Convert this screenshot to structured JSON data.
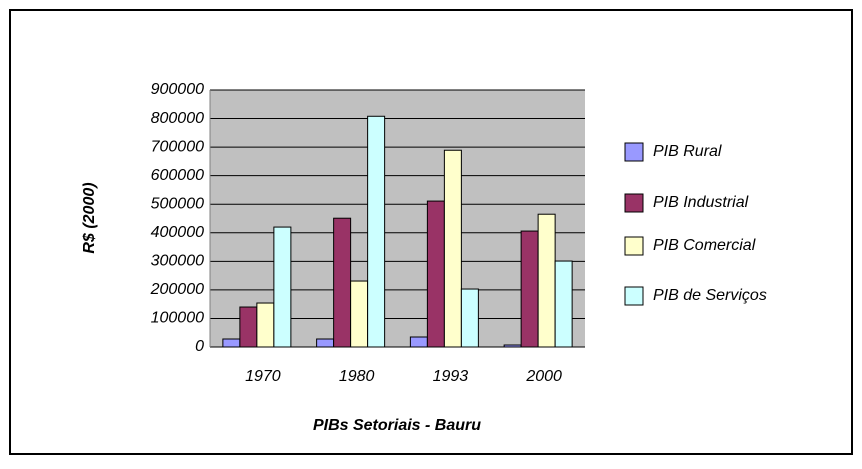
{
  "chart_data": {
    "type": "bar",
    "title": "PIBs Setoriais - Bauru",
    "y_label": "R$ (2000)",
    "categories": [
      "1970",
      "1980",
      "1993",
      "2000"
    ],
    "series": [
      {
        "name": "PIB Rural",
        "color": "#9999ff",
        "values": [
          28000,
          28000,
          35000,
          7000
        ]
      },
      {
        "name": "PIB Industrial",
        "color": "#993366",
        "values": [
          140000,
          451000,
          511000,
          406000
        ]
      },
      {
        "name": "PIB Comercial",
        "color": "#ffffcc",
        "values": [
          154000,
          231000,
          689000,
          465000
        ]
      },
      {
        "name": "PIB de Serviços",
        "color": "#ccffff",
        "values": [
          420000,
          808000,
          203000,
          301000
        ]
      }
    ],
    "ylim": [
      0,
      900000
    ],
    "yticks": [
      0,
      100000,
      200000,
      300000,
      400000,
      500000,
      600000,
      700000,
      800000,
      900000
    ],
    "grid": true,
    "legend": "right"
  }
}
